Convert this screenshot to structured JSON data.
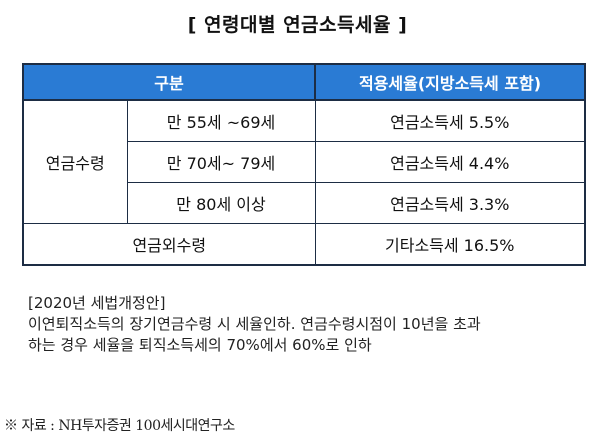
{
  "title": "[ 연령대별 연금소득세율 ]",
  "table": {
    "headers": [
      "구분",
      "적용세율(지방소득세 포함)"
    ],
    "rows": [
      {
        "group": "연금수령",
        "sub": "만 55세 ~69세",
        "rate": "연금소득세 5.5%"
      },
      {
        "sub": "만 70세~ 79세",
        "rate": "연금소득세 4.4%"
      },
      {
        "sub": "만 80세 이상",
        "rate": "연금소득세 3.3%"
      },
      {
        "group": "연금외수령",
        "rate": "기타소득세 16.5%"
      }
    ]
  },
  "note": {
    "heading": "[2020년 세법개정안]",
    "line1": "이연퇴직소득의 장기연금수령 시 세율인하. 연금수령시점이 10년을 초과",
    "line2": "하는 경우 세율을 퇴직소득세의 70%에서 60%로 인하"
  },
  "source": "※ 자료 : NH투자증권 100세시대연구소"
}
